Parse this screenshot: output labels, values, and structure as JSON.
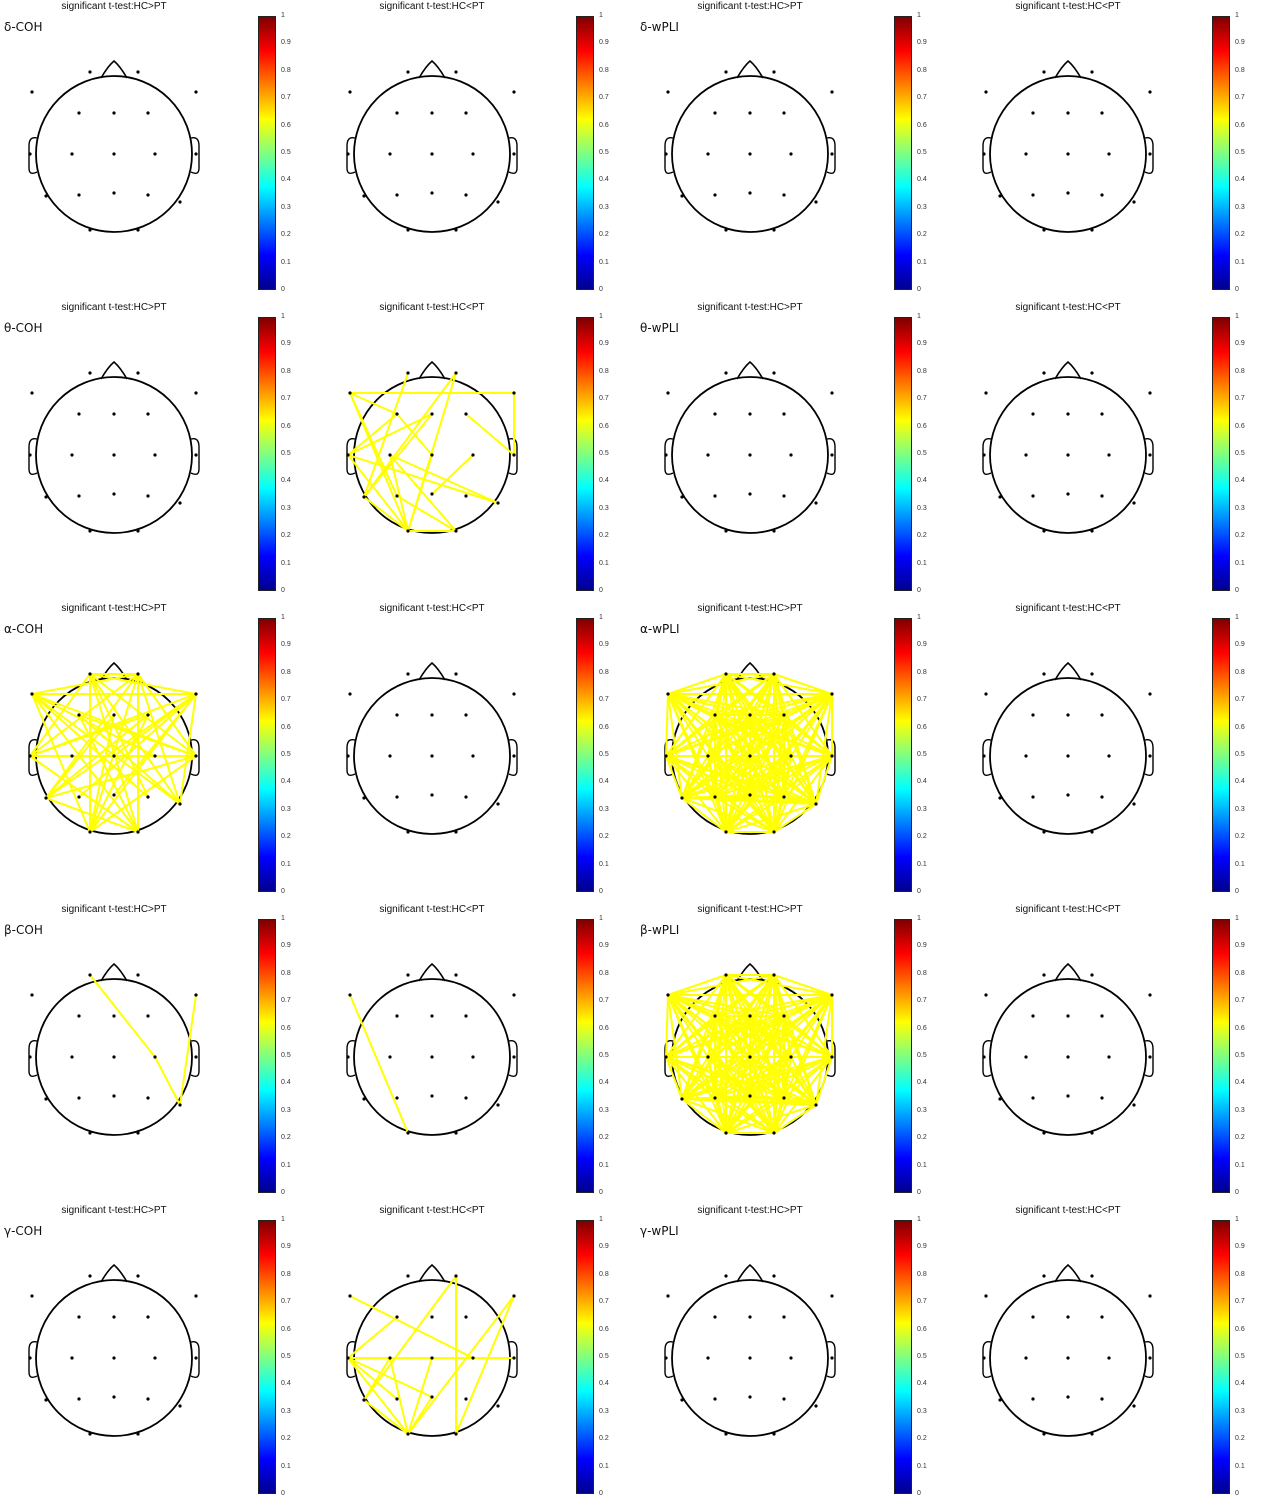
{
  "colorbar": {
    "ticks": [
      "0",
      "0.1",
      "0.2",
      "0.3",
      "0.4",
      "0.5",
      "0.6",
      "0.7",
      "0.8",
      "0.9",
      "1"
    ],
    "colormap": [
      "#00008f",
      "#0000ff",
      "#0080ff",
      "#00ffff",
      "#80ff80",
      "#ffff00",
      "#ff8000",
      "#ff0000",
      "#800000"
    ]
  },
  "edge_color": "#ffff00",
  "electrodes": [
    "Fp1",
    "Fp2",
    "F7",
    "F3",
    "Fz",
    "F4",
    "F8",
    "T3",
    "C3",
    "Cz",
    "C4",
    "T4",
    "T5",
    "P3",
    "Pz",
    "P4",
    "T6",
    "O1",
    "O2"
  ],
  "rows": [
    {
      "band": "δ",
      "panels": [
        {
          "title": "significant t-test:HC>PT",
          "label": "δ-COH",
          "connections": []
        },
        {
          "title": "significant t-test:HC<PT",
          "label": "",
          "connections": []
        },
        {
          "title": "significant t-test:HC>PT",
          "label": "δ-wPLI",
          "connections": []
        },
        {
          "title": "significant t-test:HC<PT",
          "label": "",
          "connections": []
        }
      ]
    },
    {
      "band": "θ",
      "panels": [
        {
          "title": "significant t-test:HC>PT",
          "label": "θ-COH",
          "connections": []
        },
        {
          "title": "significant t-test:HC<PT",
          "label": "",
          "connections": [
            [
              "Fp2",
              "O1"
            ],
            [
              "F7",
              "F8"
            ],
            [
              "F7",
              "O1"
            ],
            [
              "F7",
              "P3"
            ],
            [
              "F3",
              "T3"
            ],
            [
              "F3",
              "Cz"
            ],
            [
              "Fp2",
              "T5"
            ],
            [
              "F8",
              "T4"
            ],
            [
              "T3",
              "O1"
            ],
            [
              "T3",
              "T6"
            ],
            [
              "C3",
              "O2"
            ],
            [
              "C3",
              "T6"
            ],
            [
              "Cz",
              "O1"
            ],
            [
              "Fp1",
              "T5"
            ],
            [
              "T3",
              "Fz"
            ],
            [
              "F4",
              "T4"
            ],
            [
              "P3",
              "O2"
            ],
            [
              "C3",
              "O1"
            ],
            [
              "Fz",
              "T5"
            ],
            [
              "T5",
              "O1"
            ],
            [
              "O1",
              "O2"
            ],
            [
              "C4",
              "Pz"
            ],
            [
              "F7",
              "F3"
            ]
          ]
        },
        {
          "title": "significant t-test:HC>PT",
          "label": "θ-wPLI",
          "connections": []
        },
        {
          "title": "significant t-test:HC<PT",
          "label": "",
          "connections": []
        }
      ]
    },
    {
      "band": "α",
      "panels": [
        {
          "title": "significant t-test:HC>PT",
          "label": "α-COH",
          "connections": [
            [
              "Fp1",
              "F8"
            ],
            [
              "Fp1",
              "T4"
            ],
            [
              "Fp1",
              "T6"
            ],
            [
              "Fp1",
              "O2"
            ],
            [
              "Fp1",
              "P4"
            ],
            [
              "Fp2",
              "T3"
            ],
            [
              "Fp2",
              "T5"
            ],
            [
              "Fp2",
              "O1"
            ],
            [
              "Fp2",
              "F7"
            ],
            [
              "F7",
              "T4"
            ],
            [
              "F7",
              "F8"
            ],
            [
              "F7",
              "O1"
            ],
            [
              "F7",
              "C4"
            ],
            [
              "F7",
              "T6"
            ],
            [
              "T3",
              "T4"
            ],
            [
              "T3",
              "F8"
            ],
            [
              "T3",
              "O2"
            ],
            [
              "T3",
              "Fp1"
            ],
            [
              "T5",
              "F8"
            ],
            [
              "T5",
              "T4"
            ],
            [
              "T5",
              "O2"
            ],
            [
              "T5",
              "Fz"
            ],
            [
              "O1",
              "F8"
            ],
            [
              "O1",
              "T4"
            ],
            [
              "O1",
              "F4"
            ],
            [
              "O1",
              "Fp1"
            ],
            [
              "O2",
              "F7"
            ],
            [
              "O2",
              "Fp2"
            ],
            [
              "O2",
              "T3"
            ],
            [
              "F3",
              "T6"
            ],
            [
              "F3",
              "O2"
            ],
            [
              "F4",
              "T5"
            ],
            [
              "Cz",
              "F8"
            ],
            [
              "C3",
              "T4"
            ],
            [
              "Fz",
              "O1"
            ],
            [
              "Pz",
              "F8"
            ],
            [
              "P3",
              "F8"
            ],
            [
              "P4",
              "F7"
            ],
            [
              "T6",
              "Fp2"
            ],
            [
              "T4",
              "Fp2"
            ],
            [
              "F8",
              "T6"
            ],
            [
              "Fp1",
              "Fp2"
            ],
            [
              "C4",
              "T3"
            ],
            [
              "F3",
              "T4"
            ],
            [
              "F4",
              "T3"
            ]
          ]
        },
        {
          "title": "significant t-test:HC<PT",
          "label": "",
          "connections": []
        },
        {
          "title": "significant t-test:HC>PT",
          "label": "α-wPLI",
          "connections": "all"
        },
        {
          "title": "significant t-test:HC<PT",
          "label": "",
          "connections": []
        }
      ]
    },
    {
      "band": "β",
      "panels": [
        {
          "title": "significant t-test:HC>PT",
          "label": "β-COH",
          "connections": [
            [
              "Fp1",
              "C4"
            ],
            [
              "C4",
              "T6"
            ],
            [
              "T6",
              "F8"
            ]
          ]
        },
        {
          "title": "significant t-test:HC<PT",
          "label": "",
          "connections": [
            [
              "F7",
              "O1"
            ]
          ]
        },
        {
          "title": "significant t-test:HC>PT",
          "label": "β-wPLI",
          "connections": "all"
        },
        {
          "title": "significant t-test:HC<PT",
          "label": "",
          "connections": []
        }
      ]
    },
    {
      "band": "γ",
      "panels": [
        {
          "title": "significant t-test:HC>PT",
          "label": "γ-COH",
          "connections": []
        },
        {
          "title": "significant t-test:HC<PT",
          "label": "",
          "connections": [
            [
              "F7",
              "C4"
            ],
            [
              "Fp2",
              "O2"
            ],
            [
              "Fp2",
              "T5"
            ],
            [
              "F8",
              "O2"
            ],
            [
              "F8",
              "O1"
            ],
            [
              "T3",
              "T4"
            ],
            [
              "T3",
              "Pz"
            ],
            [
              "T3",
              "O1"
            ],
            [
              "C3",
              "O1"
            ],
            [
              "C3",
              "T5"
            ],
            [
              "T5",
              "O1"
            ],
            [
              "Pz",
              "O1"
            ],
            [
              "T3",
              "P3"
            ],
            [
              "Cz",
              "O1"
            ],
            [
              "F3",
              "T3"
            ]
          ]
        },
        {
          "title": "significant t-test:HC>PT",
          "label": "γ-wPLI",
          "connections": []
        },
        {
          "title": "significant t-test:HC<PT",
          "label": "",
          "connections": []
        }
      ]
    }
  ]
}
